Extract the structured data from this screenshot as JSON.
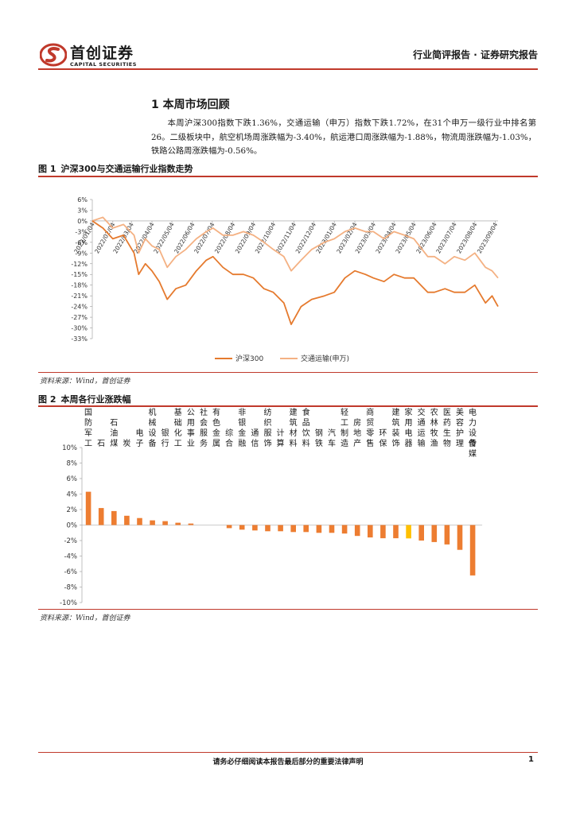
{
  "header": {
    "logo_cn": "首创证券",
    "logo_en": "CAPITAL SECURITIES",
    "doc_type": "行业简评报告 · 证券研究报告",
    "brand_color": "#c0392b"
  },
  "section": {
    "title": "1 本周市场回顾",
    "paragraph": "本周沪深300指数下跌1.36%，交通运输（申万）指数下跌1.72%，在31个申万一级行业中排名第26。二级板块中，航空机场周涨跌幅为-3.40%，航运港口周涨跌幅为-1.88%，物流周涨跌幅为-1.03%，铁路公路周涨跌幅为-0.56%。"
  },
  "figure1": {
    "label": "图 1",
    "title": "沪深300与交通运输行业指数走势",
    "source": "资料来源：Wind，首创证券"
  },
  "figure2": {
    "label": "图 2",
    "title": "本周各行业涨跌幅",
    "source": "资料来源：Wind，首创证券"
  },
  "footer": {
    "disclaimer": "请务必仔细阅读本报告最后部分的重要法律声明",
    "page": "1"
  },
  "chart_data": [
    {
      "type": "line",
      "y_ticks": [
        "6%",
        "3%",
        "0%",
        "-3%",
        "-6%",
        "-9%",
        "-12%",
        "-15%",
        "-18%",
        "-21%",
        "-24%",
        "-27%",
        "-30%",
        "-33%"
      ],
      "ylim": [
        -33,
        6
      ],
      "x_ticks": [
        "2022/01/04",
        "2022/02/04",
        "2022/03/04",
        "2022/04/04",
        "2022/05/04",
        "2022/06/04",
        "2022/07/04",
        "2022/08/04",
        "2022/09/04",
        "2022/10/04",
        "2022/11/04",
        "2022/12/04",
        "2023/01/04",
        "2023/02/04",
        "2023/03/04",
        "2023/04/04",
        "2023/05/04",
        "2023/06/04",
        "2023/07/04",
        "2023/08/04",
        "2023/09/04"
      ],
      "x_range": [
        "2022/01/04",
        "2023/09/08"
      ],
      "series": [
        {
          "name": "沪深300",
          "color": "#e57a2e",
          "points": [
            [
              "2022/01/04",
              0
            ],
            [
              "2022/01/20",
              -2
            ],
            [
              "2022/02/04",
              -5
            ],
            [
              "2022/02/20",
              -4
            ],
            [
              "2022/03/08",
              -9
            ],
            [
              "2022/03/15",
              -15
            ],
            [
              "2022/03/25",
              -12
            ],
            [
              "2022/04/04",
              -14
            ],
            [
              "2022/04/15",
              -17
            ],
            [
              "2022/04/27",
              -22
            ],
            [
              "2022/05/10",
              -19
            ],
            [
              "2022/05/25",
              -18
            ],
            [
              "2022/06/10",
              -14
            ],
            [
              "2022/06/25",
              -11
            ],
            [
              "2022/07/05",
              -10
            ],
            [
              "2022/07/20",
              -13
            ],
            [
              "2022/08/04",
              -15
            ],
            [
              "2022/08/20",
              -15
            ],
            [
              "2022/09/04",
              -16
            ],
            [
              "2022/09/20",
              -19
            ],
            [
              "2022/10/04",
              -20
            ],
            [
              "2022/10/20",
              -23
            ],
            [
              "2022/10/31",
              -29
            ],
            [
              "2022/11/15",
              -24
            ],
            [
              "2022/12/01",
              -22
            ],
            [
              "2022/12/20",
              -21
            ],
            [
              "2023/01/04",
              -20
            ],
            [
              "2023/01/20",
              -16
            ],
            [
              "2023/02/04",
              -14
            ],
            [
              "2023/02/20",
              -15
            ],
            [
              "2023/03/04",
              -16
            ],
            [
              "2023/03/20",
              -17
            ],
            [
              "2023/04/04",
              -15
            ],
            [
              "2023/04/20",
              -16
            ],
            [
              "2023/05/04",
              -16
            ],
            [
              "2023/05/25",
              -20
            ],
            [
              "2023/06/04",
              -20
            ],
            [
              "2023/06/20",
              -19
            ],
            [
              "2023/07/04",
              -20
            ],
            [
              "2023/07/20",
              -20
            ],
            [
              "2023/08/04",
              -18
            ],
            [
              "2023/08/20",
              -23
            ],
            [
              "2023/08/30",
              -21
            ],
            [
              "2023/09/08",
              -24
            ]
          ]
        },
        {
          "name": "交通运输(申万)",
          "color": "#f4b183",
          "points": [
            [
              "2022/01/04",
              0
            ],
            [
              "2022/01/20",
              1
            ],
            [
              "2022/02/04",
              -2
            ],
            [
              "2022/02/20",
              -1
            ],
            [
              "2022/03/08",
              -4
            ],
            [
              "2022/03/15",
              -9
            ],
            [
              "2022/03/25",
              -5
            ],
            [
              "2022/04/04",
              -7
            ],
            [
              "2022/04/15",
              -8
            ],
            [
              "2022/04/27",
              -13
            ],
            [
              "2022/05/10",
              -10
            ],
            [
              "2022/05/25",
              -8
            ],
            [
              "2022/06/10",
              -5
            ],
            [
              "2022/06/25",
              -3
            ],
            [
              "2022/07/05",
              -2
            ],
            [
              "2022/07/20",
              -4
            ],
            [
              "2022/08/04",
              -4
            ],
            [
              "2022/08/20",
              -3
            ],
            [
              "2022/09/04",
              -4
            ],
            [
              "2022/09/20",
              -6
            ],
            [
              "2022/10/04",
              -8
            ],
            [
              "2022/10/20",
              -10
            ],
            [
              "2022/10/31",
              -14
            ],
            [
              "2022/11/15",
              -11
            ],
            [
              "2022/12/01",
              -8
            ],
            [
              "2022/12/20",
              -6
            ],
            [
              "2023/01/04",
              -5
            ],
            [
              "2023/01/20",
              -3
            ],
            [
              "2023/02/04",
              -2
            ],
            [
              "2023/02/20",
              -3
            ],
            [
              "2023/03/04",
              -3
            ],
            [
              "2023/03/20",
              -5
            ],
            [
              "2023/04/04",
              -3
            ],
            [
              "2023/04/20",
              -4
            ],
            [
              "2023/05/04",
              -5
            ],
            [
              "2023/05/25",
              -10
            ],
            [
              "2023/06/04",
              -10
            ],
            [
              "2023/06/20",
              -12
            ],
            [
              "2023/07/04",
              -10
            ],
            [
              "2023/07/20",
              -11
            ],
            [
              "2023/08/04",
              -9
            ],
            [
              "2023/08/20",
              -13
            ],
            [
              "2023/08/30",
              -14
            ],
            [
              "2023/09/08",
              -16
            ]
          ]
        }
      ],
      "legend_position": "bottom-center"
    },
    {
      "type": "bar",
      "categories": [
        "国防军工",
        "石油石化",
        "煤炭",
        "电子",
        "机械设备",
        "银行",
        "基础化工",
        "公用事业",
        "社会服务",
        "有色金属",
        "综合",
        "非银金融",
        "通信",
        "纺织服饰",
        "计算机",
        "建筑材料",
        "食品饮料",
        "钢铁",
        "汽车",
        "轻工制造",
        "房地产",
        "商贸零售",
        "环保",
        "建筑装饰",
        "家用电器",
        "交通运输",
        "农林牧渔",
        "医药生物",
        "美容护理",
        "电力设备",
        "传媒"
      ],
      "category_labels": [
        [
          "国",
          "防",
          "军",
          "工"
        ],
        [
          "",
          "",
          "",
          "石"
        ],
        [
          "",
          "石",
          "油",
          "煤"
        ],
        [
          "",
          "",
          "",
          "炭"
        ],
        [
          "",
          "",
          "电",
          "子"
        ],
        [
          "机",
          "械",
          "设",
          "备"
        ],
        [
          "",
          "",
          "银",
          "行"
        ],
        [
          "基",
          "础",
          "化",
          "工"
        ],
        [
          "公",
          "用",
          "事",
          "业"
        ],
        [
          "社",
          "会",
          "服",
          "务"
        ],
        [
          "有",
          "色",
          "金",
          "属"
        ],
        [
          "",
          "",
          "综",
          "合"
        ],
        [
          "非",
          "银",
          "金",
          "融"
        ],
        [
          "",
          "",
          "通",
          "信"
        ],
        [
          "纺",
          "织",
          "服",
          "饰"
        ],
        [
          "",
          "",
          "计",
          "算"
        ],
        [
          "建",
          "筑",
          "材",
          "料"
        ],
        [
          "食",
          "品",
          "饮",
          "料"
        ],
        [
          "",
          "",
          "钢",
          "铁"
        ],
        [
          "",
          "",
          "汽",
          "车"
        ],
        [
          "轻",
          "工",
          "制",
          "造"
        ],
        [
          "",
          "房",
          "地",
          "产"
        ],
        [
          "商",
          "贸",
          "零",
          "售"
        ],
        [
          "",
          "",
          "环",
          "保"
        ],
        [
          "建",
          "筑",
          "装",
          "饰"
        ],
        [
          "家",
          "用",
          "电",
          "器"
        ],
        [
          "交",
          "通",
          "运",
          "输"
        ],
        [
          "农",
          "林",
          "牧",
          "渔"
        ],
        [
          "医",
          "药",
          "生",
          "物"
        ],
        [
          "美",
          "容",
          "护",
          "理"
        ],
        [
          "电",
          "力",
          "设",
          "备"
        ]
      ],
      "values": [
        4.3,
        2.2,
        1.8,
        1.2,
        0.9,
        0.6,
        0.5,
        0.3,
        0.2,
        0.0,
        0.0,
        -0.4,
        -0.6,
        -0.7,
        -0.8,
        -0.8,
        -0.9,
        -0.9,
        -1.0,
        -1.0,
        -1.1,
        -1.4,
        -1.6,
        -1.7,
        -1.7,
        -1.72,
        -2.0,
        -2.2,
        -2.5,
        -3.2,
        -6.5
      ],
      "y_ticks": [
        "10%",
        "8%",
        "6%",
        "4%",
        "2%",
        "0%",
        "-2%",
        "-4%",
        "-6%",
        "-8%",
        "-10%"
      ],
      "ylim": [
        -10,
        10
      ],
      "bar_color": "#ed7d31",
      "highlight_color": "#ffc000",
      "highlight_category": "交通运输"
    }
  ]
}
